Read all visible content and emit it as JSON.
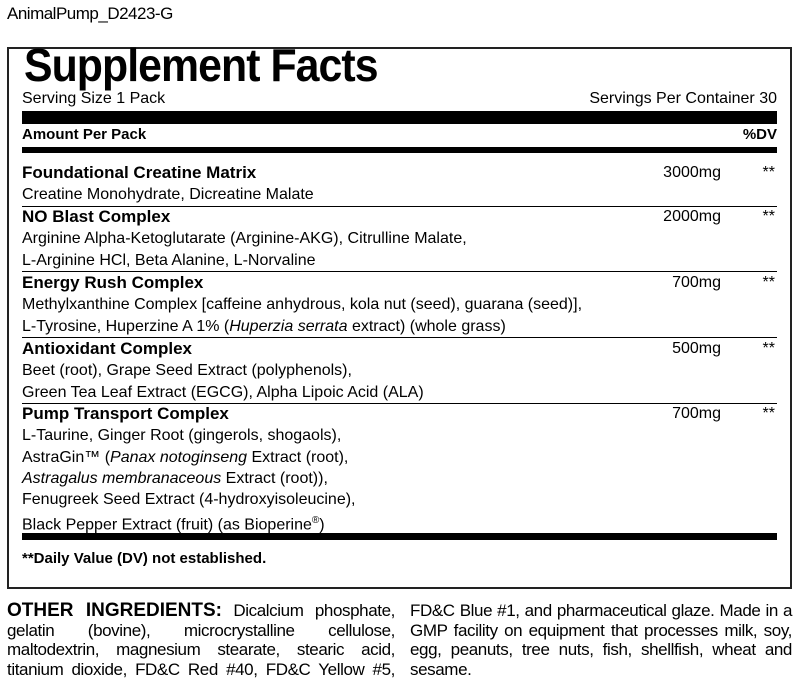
{
  "file_name": "AnimalPump_D2423-G",
  "title": "Supplement Facts",
  "serving_size": "Serving Size 1 Pack",
  "servings_per_container": "Servings Per Container 30",
  "header": {
    "amount": "Amount Per Pack",
    "dv": "%DV"
  },
  "rows": [
    {
      "name": "Foundational Creatine Matrix",
      "amount": "3000mg",
      "dv": "**",
      "lines": [
        "Creatine Monohydrate, Dicreatine Malate"
      ]
    },
    {
      "name": "NO Blast Complex",
      "amount": "2000mg",
      "dv": "**",
      "lines": [
        "Arginine Alpha-Ketoglutarate (Arginine-AKG), Citrulline Malate,",
        "L-Arginine HCl, Beta Alanine, L-Norvaline"
      ]
    },
    {
      "name": "Energy Rush Complex",
      "amount": "700mg",
      "dv": "**",
      "lines": [
        "Methylxanthine Complex [caffeine anhydrous, kola nut (seed), guarana (seed)],"
      ],
      "line2": {
        "a": "L-Tyrosine, Huperzine A 1% (",
        "i": "Huperzia serrata",
        "b": " extract) (whole grass)"
      }
    },
    {
      "name": "Antioxidant Complex",
      "amount": "500mg",
      "dv": "**",
      "lines": [
        "Beet (root), Grape Seed Extract (polyphenols),",
        "Green Tea Leaf Extract (EGCG), Alpha Lipoic Acid (ALA)"
      ]
    },
    {
      "name": "Pump Transport Complex",
      "amount": "700mg",
      "dv": "**",
      "l1": "L-Taurine, Ginger Root (gingerols, shogaols),",
      "l2a": "AstraGin™ (",
      "l2i": "Panax notoginseng",
      "l2b": " Extract (root),",
      "l3i": "Astragalus membranaceous",
      "l3b": " Extract (root)),",
      "l4": "Fenugreek Seed Extract (4-hydroxyisoleucine),",
      "l5a": "Black Pepper Extract (fruit) (as Bioperine",
      "l5s": "®",
      "l5b": ")"
    }
  ],
  "footnote": "**Daily Value (DV) not established.",
  "other_ingredients": {
    "label": "OTHER INGREDIENTS:",
    "col1": [
      " Dicalcium phosphate,",
      "gelatin (bovine), microcrystalline cellulose,",
      "maltodextrin, magnesium stearate, stearic acid,",
      "titanium dioxide, FD&C Red #40, FD&C Yellow #5,"
    ],
    "col2": [
      "FD&C Blue #1, and pharmaceutical glaze. Made in a",
      "GMP facility on equipment that processes milk, soy,",
      "egg, peanuts, tree nuts, fish, shellfish, wheat and",
      "sesame."
    ]
  }
}
